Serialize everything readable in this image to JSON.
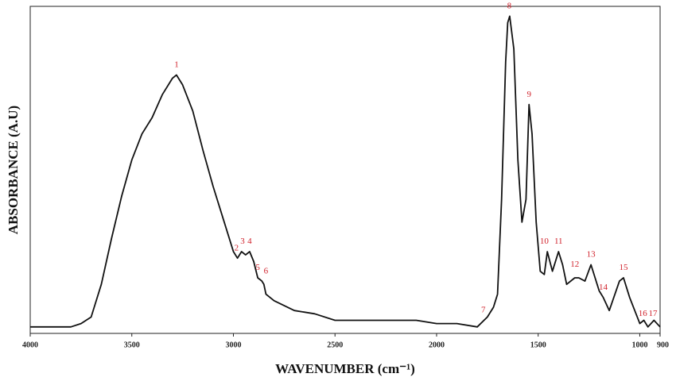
{
  "chart_data": {
    "type": "line",
    "x_label": "WAVENUMBER (cm⁻¹)",
    "y_label": "ABSORBANCE (A.U)",
    "x": [
      4000,
      3800,
      3750,
      3700,
      3650,
      3600,
      3550,
      3500,
      3450,
      3400,
      3350,
      3300,
      3280,
      3250,
      3200,
      3150,
      3100,
      3050,
      3000,
      2980,
      2960,
      2940,
      2920,
      2900,
      2880,
      2860,
      2850,
      2840,
      2800,
      2700,
      2600,
      2500,
      2400,
      2300,
      2200,
      2100,
      2000,
      1900,
      1800,
      1750,
      1720,
      1700,
      1680,
      1660,
      1650,
      1640,
      1620,
      1600,
      1580,
      1560,
      1545,
      1530,
      1510,
      1490,
      1470,
      1455,
      1430,
      1400,
      1380,
      1360,
      1320,
      1300,
      1270,
      1240,
      1200,
      1180,
      1150,
      1100,
      1080,
      1050,
      1000,
      980,
      960,
      930,
      900
    ],
    "series": [
      {
        "name": "spectrum",
        "color": "#111111",
        "values": [
          0.02,
          0.02,
          0.03,
          0.05,
          0.15,
          0.29,
          0.42,
          0.53,
          0.61,
          0.66,
          0.73,
          0.78,
          0.79,
          0.76,
          0.68,
          0.56,
          0.45,
          0.35,
          0.25,
          0.23,
          0.25,
          0.24,
          0.25,
          0.22,
          0.17,
          0.16,
          0.15,
          0.12,
          0.1,
          0.07,
          0.06,
          0.04,
          0.04,
          0.04,
          0.04,
          0.04,
          0.03,
          0.03,
          0.02,
          0.05,
          0.08,
          0.12,
          0.41,
          0.83,
          0.95,
          0.97,
          0.87,
          0.53,
          0.34,
          0.41,
          0.7,
          0.61,
          0.34,
          0.19,
          0.18,
          0.25,
          0.19,
          0.25,
          0.21,
          0.15,
          0.17,
          0.17,
          0.16,
          0.21,
          0.13,
          0.11,
          0.07,
          0.16,
          0.17,
          0.11,
          0.03,
          0.04,
          0.02,
          0.04,
          0.02
        ]
      }
    ],
    "xlim": [
      4000,
      900
    ],
    "ylim": [
      0,
      1
    ],
    "xticks": [
      4000,
      3500,
      3000,
      2500,
      2000,
      1500,
      1000,
      900
    ],
    "annotations": [
      {
        "text": "1",
        "x": 3280,
        "y": 0.82
      },
      {
        "text": "2",
        "x": 2985,
        "y": 0.26
      },
      {
        "text": "3",
        "x": 2955,
        "y": 0.28
      },
      {
        "text": "4",
        "x": 2920,
        "y": 0.28
      },
      {
        "text": "5",
        "x": 2880,
        "y": 0.2
      },
      {
        "text": "6",
        "x": 2840,
        "y": 0.19
      },
      {
        "text": "7",
        "x": 1770,
        "y": 0.07
      },
      {
        "text": "8",
        "x": 1642,
        "y": 1.0
      },
      {
        "text": "9",
        "x": 1545,
        "y": 0.73
      },
      {
        "text": "10",
        "x": 1470,
        "y": 0.28
      },
      {
        "text": "11",
        "x": 1400,
        "y": 0.28
      },
      {
        "text": "12",
        "x": 1320,
        "y": 0.21
      },
      {
        "text": "13",
        "x": 1240,
        "y": 0.24
      },
      {
        "text": "14",
        "x": 1180,
        "y": 0.14
      },
      {
        "text": "15",
        "x": 1080,
        "y": 0.2
      },
      {
        "text": "16",
        "x": 985,
        "y": 0.06
      },
      {
        "text": "17",
        "x": 935,
        "y": 0.06
      }
    ]
  }
}
